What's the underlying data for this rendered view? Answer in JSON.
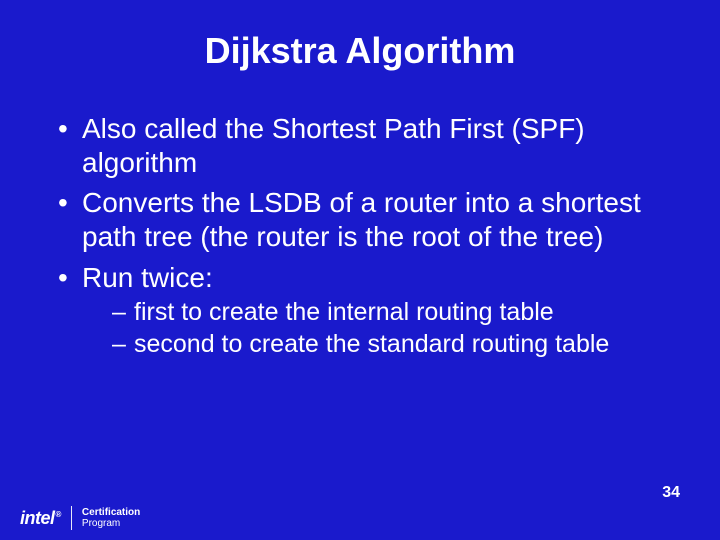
{
  "background_color": "#1a1acc",
  "text_color": "#ffffff",
  "title": {
    "text": "Dijkstra Algorithm",
    "fontsize": 36,
    "weight": "bold",
    "align": "center"
  },
  "bullets": [
    {
      "text": "Also called the Shortest Path First (SPF) algorithm"
    },
    {
      "text": "Converts the LSDB of a router into a shortest path tree (the router is the root of the tree)"
    },
    {
      "text": "Run twice:",
      "sub": [
        {
          "text": "first to create the internal routing table"
        },
        {
          "text": "second to create the standard routing table"
        }
      ]
    }
  ],
  "page_number": "34",
  "footer": {
    "brand": "intel",
    "brand_reg": "®",
    "line1": "Certification",
    "line2": "Program"
  },
  "typography": {
    "body_fontsize": 28,
    "sub_fontsize": 25,
    "pagenum_fontsize": 16
  }
}
